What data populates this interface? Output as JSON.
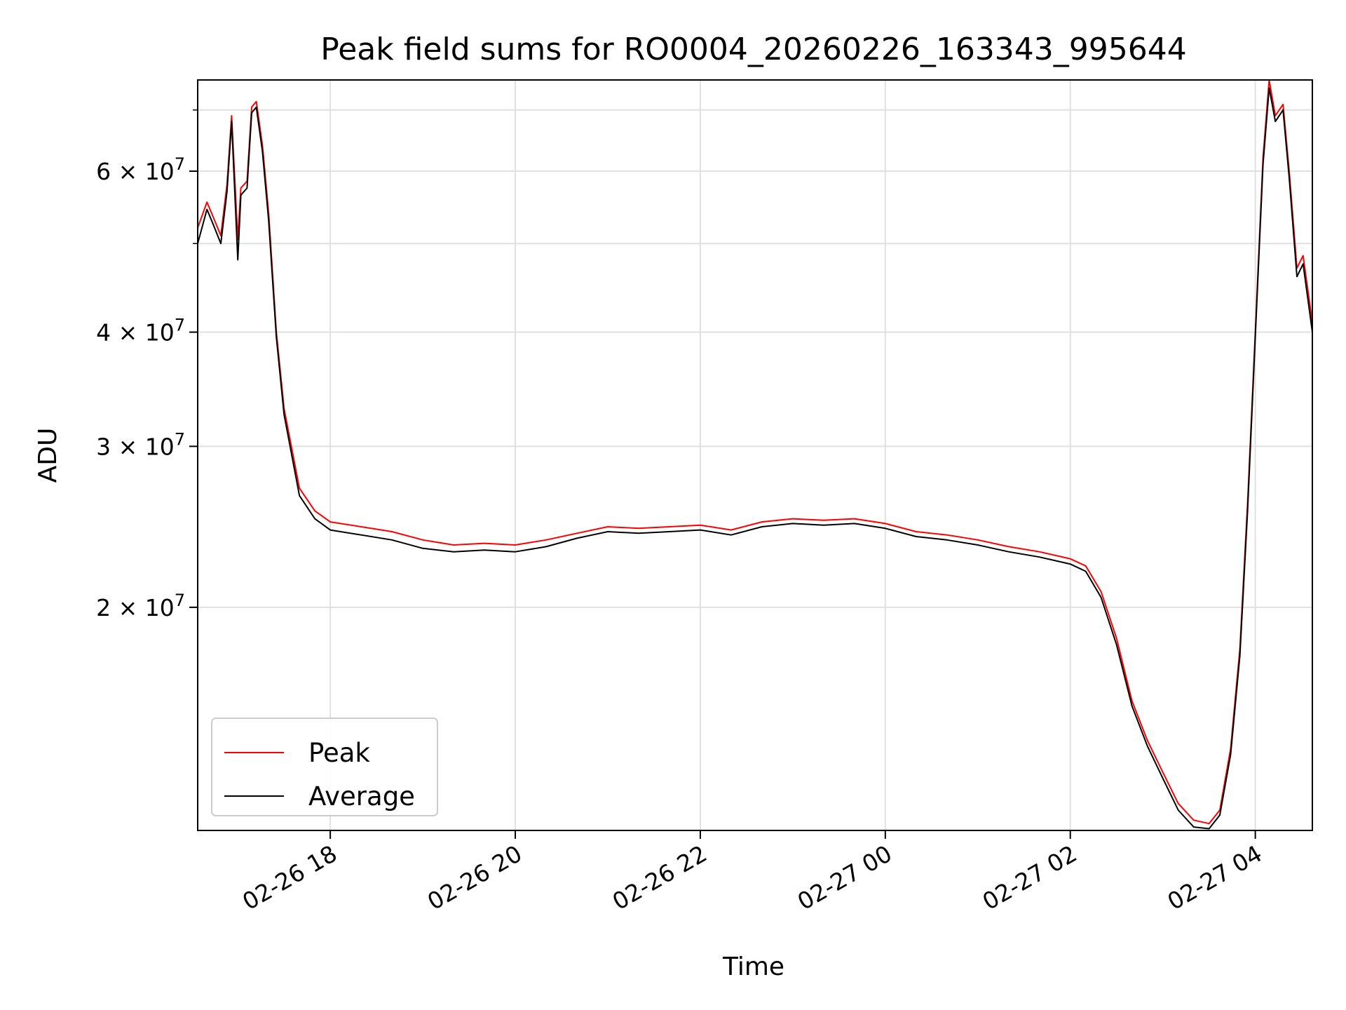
{
  "chart_data": {
    "type": "line",
    "title": "Peak field sums for RO0004_20260226_163343_995644",
    "xlabel": "Time",
    "ylabel": "ADU",
    "yscale": "log",
    "grid": true,
    "legend_placement": "lower-left",
    "xlim": [
      "2026-02-26 16:34",
      "2026-02-27 04:37"
    ],
    "ylim": [
      11400000,
      75500000
    ],
    "x_ticks": [
      {
        "value": "2026-02-26 18:00",
        "label": "02-26 18"
      },
      {
        "value": "2026-02-26 20:00",
        "label": "02-26 20"
      },
      {
        "value": "2026-02-26 22:00",
        "label": "02-26 22"
      },
      {
        "value": "2026-02-27 00:00",
        "label": "02-27 00"
      },
      {
        "value": "2026-02-27 02:00",
        "label": "02-27 02"
      },
      {
        "value": "2026-02-27 04:00",
        "label": "02-27 04"
      }
    ],
    "y_ticks": [
      {
        "value": 20000000,
        "mantissa": "2",
        "base": "10",
        "exp": "7"
      },
      {
        "value": 30000000,
        "mantissa": "3",
        "base": "10",
        "exp": "7"
      },
      {
        "value": 40000000,
        "mantissa": "4",
        "base": "10",
        "exp": "7"
      },
      {
        "value": 60000000,
        "mantissa": "6",
        "base": "10",
        "exp": "7"
      }
    ],
    "series": [
      {
        "name": "Peak",
        "color": "#ff0000",
        "points": [
          [
            "2026-02-26 16:34",
            52000000
          ],
          [
            "2026-02-26 16:40",
            55500000
          ],
          [
            "2026-02-26 16:44",
            53500000
          ],
          [
            "2026-02-26 16:49",
            51000000
          ],
          [
            "2026-02-26 16:53",
            58000000
          ],
          [
            "2026-02-26 16:56",
            69000000
          ],
          [
            "2026-02-26 17:00",
            50500000
          ],
          [
            "2026-02-26 17:02",
            57500000
          ],
          [
            "2026-02-26 17:06",
            58500000
          ],
          [
            "2026-02-26 17:09",
            70500000
          ],
          [
            "2026-02-26 17:12",
            71500000
          ],
          [
            "2026-02-26 17:16",
            64000000
          ],
          [
            "2026-02-26 17:20",
            54000000
          ],
          [
            "2026-02-26 17:25",
            40000000
          ],
          [
            "2026-02-26 17:30",
            33000000
          ],
          [
            "2026-02-26 17:40",
            27000000
          ],
          [
            "2026-02-26 17:50",
            25500000
          ],
          [
            "2026-02-26 18:00",
            24800000
          ],
          [
            "2026-02-26 18:20",
            24500000
          ],
          [
            "2026-02-26 18:40",
            24200000
          ],
          [
            "2026-02-26 19:00",
            23700000
          ],
          [
            "2026-02-26 19:20",
            23400000
          ],
          [
            "2026-02-26 19:40",
            23500000
          ],
          [
            "2026-02-26 20:00",
            23400000
          ],
          [
            "2026-02-26 20:20",
            23700000
          ],
          [
            "2026-02-26 20:40",
            24100000
          ],
          [
            "2026-02-26 21:00",
            24500000
          ],
          [
            "2026-02-26 21:20",
            24400000
          ],
          [
            "2026-02-26 21:40",
            24500000
          ],
          [
            "2026-02-26 22:00",
            24600000
          ],
          [
            "2026-02-26 22:20",
            24300000
          ],
          [
            "2026-02-26 22:40",
            24800000
          ],
          [
            "2026-02-26 23:00",
            25000000
          ],
          [
            "2026-02-26 23:20",
            24900000
          ],
          [
            "2026-02-26 23:40",
            25000000
          ],
          [
            "2026-02-27 00:00",
            24700000
          ],
          [
            "2026-02-27 00:20",
            24200000
          ],
          [
            "2026-02-27 00:40",
            24000000
          ],
          [
            "2026-02-27 01:00",
            23700000
          ],
          [
            "2026-02-27 01:20",
            23300000
          ],
          [
            "2026-02-27 01:40",
            23000000
          ],
          [
            "2026-02-27 02:00",
            22600000
          ],
          [
            "2026-02-27 02:10",
            22200000
          ],
          [
            "2026-02-27 02:20",
            20800000
          ],
          [
            "2026-02-27 02:30",
            18500000
          ],
          [
            "2026-02-27 02:40",
            15800000
          ],
          [
            "2026-02-27 02:50",
            14300000
          ],
          [
            "2026-02-27 03:00",
            13200000
          ],
          [
            "2026-02-27 03:10",
            12200000
          ],
          [
            "2026-02-27 03:20",
            11700000
          ],
          [
            "2026-02-27 03:30",
            11600000
          ],
          [
            "2026-02-27 03:37",
            12000000
          ],
          [
            "2026-02-27 03:44",
            14000000
          ],
          [
            "2026-02-27 03:50",
            18000000
          ],
          [
            "2026-02-27 03:55",
            26000000
          ],
          [
            "2026-02-27 04:00",
            40000000
          ],
          [
            "2026-02-27 04:05",
            62000000
          ],
          [
            "2026-02-27 04:09",
            75500000
          ],
          [
            "2026-02-27 04:13",
            69000000
          ],
          [
            "2026-02-27 04:18",
            71000000
          ],
          [
            "2026-02-27 04:22",
            60000000
          ],
          [
            "2026-02-27 04:27",
            47000000
          ],
          [
            "2026-02-27 04:31",
            48500000
          ],
          [
            "2026-02-27 04:37",
            41000000
          ]
        ]
      },
      {
        "name": "Average",
        "color": "#000000",
        "points": [
          [
            "2026-02-26 16:34",
            50000000
          ],
          [
            "2026-02-26 16:40",
            54500000
          ],
          [
            "2026-02-26 16:44",
            52500000
          ],
          [
            "2026-02-26 16:49",
            50000000
          ],
          [
            "2026-02-26 16:53",
            57000000
          ],
          [
            "2026-02-26 16:56",
            68000000
          ],
          [
            "2026-02-26 17:00",
            48000000
          ],
          [
            "2026-02-26 17:02",
            56500000
          ],
          [
            "2026-02-26 17:06",
            57500000
          ],
          [
            "2026-02-26 17:09",
            69500000
          ],
          [
            "2026-02-26 17:12",
            70500000
          ],
          [
            "2026-02-26 17:16",
            63000000
          ],
          [
            "2026-02-26 17:20",
            53000000
          ],
          [
            "2026-02-26 17:25",
            39500000
          ],
          [
            "2026-02-26 17:30",
            32500000
          ],
          [
            "2026-02-26 17:40",
            26500000
          ],
          [
            "2026-02-26 17:50",
            25000000
          ],
          [
            "2026-02-26 18:00",
            24300000
          ],
          [
            "2026-02-26 18:20",
            24000000
          ],
          [
            "2026-02-26 18:40",
            23700000
          ],
          [
            "2026-02-26 19:00",
            23200000
          ],
          [
            "2026-02-26 19:20",
            23000000
          ],
          [
            "2026-02-26 19:40",
            23100000
          ],
          [
            "2026-02-26 20:00",
            23000000
          ],
          [
            "2026-02-26 20:20",
            23300000
          ],
          [
            "2026-02-26 20:40",
            23800000
          ],
          [
            "2026-02-26 21:00",
            24200000
          ],
          [
            "2026-02-26 21:20",
            24100000
          ],
          [
            "2026-02-26 21:40",
            24200000
          ],
          [
            "2026-02-26 22:00",
            24300000
          ],
          [
            "2026-02-26 22:20",
            24000000
          ],
          [
            "2026-02-26 22:40",
            24500000
          ],
          [
            "2026-02-26 23:00",
            24700000
          ],
          [
            "2026-02-26 23:20",
            24600000
          ],
          [
            "2026-02-26 23:40",
            24700000
          ],
          [
            "2026-02-27 00:00",
            24400000
          ],
          [
            "2026-02-27 00:20",
            23900000
          ],
          [
            "2026-02-27 00:40",
            23700000
          ],
          [
            "2026-02-27 01:00",
            23400000
          ],
          [
            "2026-02-27 01:20",
            23000000
          ],
          [
            "2026-02-27 01:40",
            22700000
          ],
          [
            "2026-02-27 02:00",
            22300000
          ],
          [
            "2026-02-27 02:10",
            21900000
          ],
          [
            "2026-02-27 02:20",
            20500000
          ],
          [
            "2026-02-27 02:30",
            18200000
          ],
          [
            "2026-02-27 02:40",
            15600000
          ],
          [
            "2026-02-27 02:50",
            14100000
          ],
          [
            "2026-02-27 03:00",
            13000000
          ],
          [
            "2026-02-27 03:10",
            12000000
          ],
          [
            "2026-02-27 03:20",
            11500000
          ],
          [
            "2026-02-27 03:30",
            11450000
          ],
          [
            "2026-02-27 03:37",
            11850000
          ],
          [
            "2026-02-27 03:44",
            13800000
          ],
          [
            "2026-02-27 03:50",
            17700000
          ],
          [
            "2026-02-27 03:55",
            25500000
          ],
          [
            "2026-02-27 04:00",
            39500000
          ],
          [
            "2026-02-27 04:05",
            61000000
          ],
          [
            "2026-02-27 04:09",
            74000000
          ],
          [
            "2026-02-27 04:13",
            68000000
          ],
          [
            "2026-02-27 04:18",
            70000000
          ],
          [
            "2026-02-27 04:22",
            59000000
          ],
          [
            "2026-02-27 04:27",
            46000000
          ],
          [
            "2026-02-27 04:31",
            47500000
          ],
          [
            "2026-02-27 04:37",
            40000000
          ]
        ]
      }
    ]
  }
}
